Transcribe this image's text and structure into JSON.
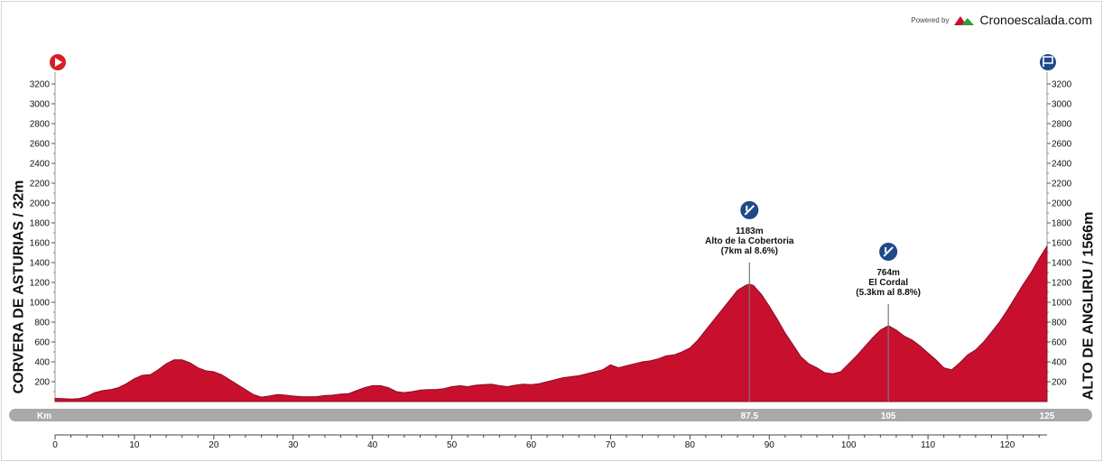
{
  "branding": {
    "powered_by": "Powered by",
    "site": "Cronoescalada.com",
    "logo_colors": [
      "#c8102e",
      "#2e9e3a"
    ]
  },
  "start_label": "CORVERA DE ASTURIAS / 32m",
  "finish_label": "ALTO DE ANGLIRU / 1566m",
  "colors": {
    "profile_fill": "#c8102e",
    "profile_stroke": "#8e0c1f",
    "climb_badge": "#1f4a8a",
    "start_icon": "#d61f26",
    "finish_icon": "#1f4a8a",
    "km_bar": "#a9a9a9"
  },
  "icons": {
    "start": "play-icon",
    "finish": "finish-flag-icon",
    "climb": "climb-icon"
  },
  "chart_data": {
    "type": "area",
    "xlabel": "Km",
    "ylabel": "",
    "xlim": [
      0,
      125
    ],
    "ylim": [
      0,
      3300
    ],
    "x_ticks": [
      0,
      10,
      20,
      30,
      40,
      50,
      60,
      70,
      80,
      90,
      100,
      110,
      120
    ],
    "y_ticks": [
      200,
      400,
      600,
      800,
      1000,
      1200,
      1400,
      1600,
      1800,
      2000,
      2200,
      2400,
      2600,
      2800,
      3000,
      3200
    ],
    "km_bar_labels": [
      {
        "km": 87.5,
        "label": "87.5"
      },
      {
        "km": 105,
        "label": "105"
      },
      {
        "km": 125,
        "label": "125"
      }
    ],
    "profile": [
      [
        0,
        32
      ],
      [
        1,
        30
      ],
      [
        2,
        25
      ],
      [
        3,
        30
      ],
      [
        4,
        50
      ],
      [
        5,
        90
      ],
      [
        6,
        110
      ],
      [
        7,
        120
      ],
      [
        8,
        140
      ],
      [
        9,
        180
      ],
      [
        10,
        230
      ],
      [
        11,
        265
      ],
      [
        12,
        270
      ],
      [
        13,
        320
      ],
      [
        14,
        380
      ],
      [
        15,
        420
      ],
      [
        16,
        420
      ],
      [
        17,
        390
      ],
      [
        18,
        340
      ],
      [
        19,
        310
      ],
      [
        20,
        300
      ],
      [
        21,
        270
      ],
      [
        22,
        220
      ],
      [
        23,
        170
      ],
      [
        24,
        120
      ],
      [
        25,
        70
      ],
      [
        26,
        45
      ],
      [
        27,
        55
      ],
      [
        28,
        70
      ],
      [
        29,
        65
      ],
      [
        30,
        55
      ],
      [
        31,
        50
      ],
      [
        32,
        48
      ],
      [
        33,
        50
      ],
      [
        34,
        60
      ],
      [
        35,
        65
      ],
      [
        36,
        75
      ],
      [
        37,
        80
      ],
      [
        38,
        110
      ],
      [
        39,
        140
      ],
      [
        40,
        160
      ],
      [
        41,
        160
      ],
      [
        42,
        140
      ],
      [
        43,
        100
      ],
      [
        44,
        90
      ],
      [
        45,
        100
      ],
      [
        46,
        115
      ],
      [
        47,
        120
      ],
      [
        48,
        120
      ],
      [
        49,
        130
      ],
      [
        50,
        150
      ],
      [
        51,
        160
      ],
      [
        52,
        150
      ],
      [
        53,
        165
      ],
      [
        54,
        170
      ],
      [
        55,
        175
      ],
      [
        56,
        160
      ],
      [
        57,
        150
      ],
      [
        58,
        165
      ],
      [
        59,
        175
      ],
      [
        60,
        170
      ],
      [
        61,
        180
      ],
      [
        62,
        200
      ],
      [
        63,
        220
      ],
      [
        64,
        240
      ],
      [
        65,
        250
      ],
      [
        66,
        260
      ],
      [
        67,
        280
      ],
      [
        68,
        300
      ],
      [
        69,
        320
      ],
      [
        70,
        370
      ],
      [
        71,
        340
      ],
      [
        72,
        360
      ],
      [
        73,
        380
      ],
      [
        74,
        400
      ],
      [
        75,
        410
      ],
      [
        76,
        430
      ],
      [
        77,
        460
      ],
      [
        78,
        470
      ],
      [
        79,
        500
      ],
      [
        80,
        540
      ],
      [
        81,
        620
      ],
      [
        82,
        720
      ],
      [
        83,
        820
      ],
      [
        84,
        920
      ],
      [
        85,
        1020
      ],
      [
        86,
        1120
      ],
      [
        87,
        1170
      ],
      [
        87.5,
        1183
      ],
      [
        88,
        1170
      ],
      [
        89,
        1080
      ],
      [
        90,
        960
      ],
      [
        91,
        830
      ],
      [
        92,
        690
      ],
      [
        93,
        570
      ],
      [
        94,
        450
      ],
      [
        95,
        380
      ],
      [
        96,
        340
      ],
      [
        97,
        290
      ],
      [
        98,
        280
      ],
      [
        99,
        300
      ],
      [
        100,
        380
      ],
      [
        101,
        460
      ],
      [
        102,
        550
      ],
      [
        103,
        640
      ],
      [
        104,
        720
      ],
      [
        105,
        764
      ],
      [
        106,
        720
      ],
      [
        107,
        660
      ],
      [
        108,
        620
      ],
      [
        109,
        560
      ],
      [
        110,
        490
      ],
      [
        111,
        420
      ],
      [
        112,
        340
      ],
      [
        113,
        320
      ],
      [
        114,
        390
      ],
      [
        115,
        470
      ],
      [
        116,
        520
      ],
      [
        117,
        600
      ],
      [
        118,
        700
      ],
      [
        119,
        800
      ],
      [
        120,
        920
      ],
      [
        121,
        1050
      ],
      [
        122,
        1180
      ],
      [
        123,
        1300
      ],
      [
        124,
        1440
      ],
      [
        125,
        1566
      ]
    ],
    "climbs": [
      {
        "km": 87.5,
        "elevation": 1183,
        "elevation_label": "1183m",
        "name": "Alto de la Cobertoria",
        "detail": "(7km al 8.6%)"
      },
      {
        "km": 105,
        "elevation": 764,
        "elevation_label": "764m",
        "name": "El Cordal",
        "detail": "(5.3km al 8.8%)"
      }
    ]
  }
}
